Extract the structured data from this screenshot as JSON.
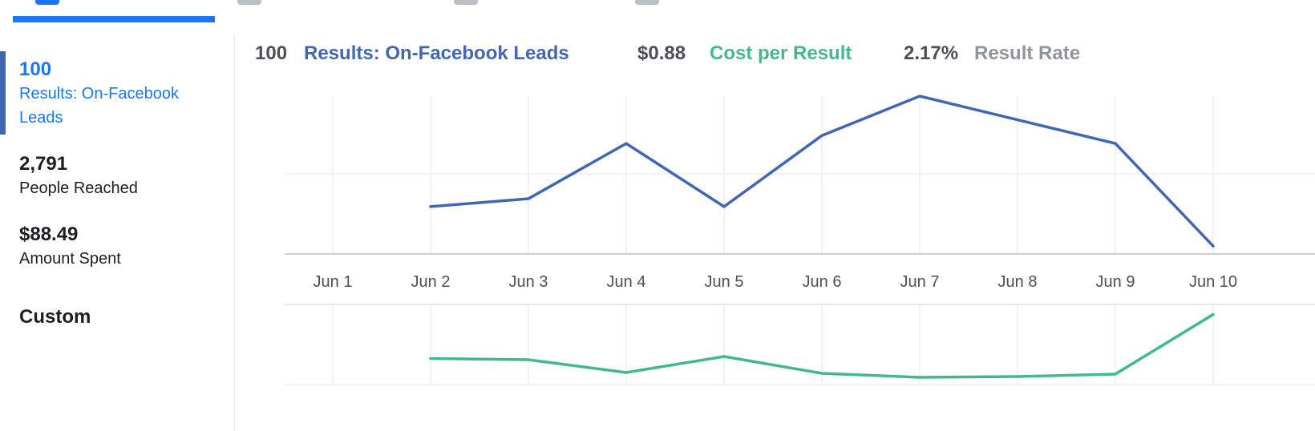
{
  "tabs": [
    {
      "label": "",
      "active": true,
      "icon": "bar-chart-icon"
    },
    {
      "label": "",
      "active": false,
      "icon": "demographics-icon"
    },
    {
      "label": "",
      "active": false,
      "icon": "placement-icon"
    },
    {
      "label": "",
      "active": false,
      "icon": "delivery-icon"
    }
  ],
  "metrics": [
    {
      "value": "100",
      "label": "Results: On-Facebook Leads",
      "selected": true
    },
    {
      "value": "2,791",
      "label": "People Reached",
      "selected": false
    },
    {
      "value": "$88.49",
      "label": "Amount Spent",
      "selected": false
    }
  ],
  "custom_label": "Custom",
  "legend": {
    "results_value": "100",
    "results_label": "Results: On-Facebook Leads",
    "cost_value": "$0.88",
    "cost_label": "Cost per Result",
    "rate_value": "2.17%",
    "rate_label": "Result Rate"
  },
  "colors": {
    "results": "#4267b2",
    "cost": "#42b88f",
    "selected_text": "#1877f2"
  },
  "chart_data": {
    "type": "line",
    "x": [
      "Jun 1",
      "Jun 2",
      "Jun 3",
      "Jun 4",
      "Jun 5",
      "Jun 6",
      "Jun 7",
      "Jun 8",
      "Jun 9",
      "Jun 10"
    ],
    "grid": true,
    "series": [
      {
        "name": "Results: On-Facebook Leads",
        "values": [
          null,
          6,
          7,
          14,
          6,
          15,
          20,
          17,
          14,
          1
        ],
        "ylim": [
          0,
          20
        ]
      },
      {
        "name": "Cost per Result",
        "values": [
          null,
          0.65,
          0.62,
          0.3,
          0.7,
          0.28,
          0.18,
          0.2,
          0.26,
          1.75
        ],
        "ylim": [
          0,
          2.0
        ]
      }
    ]
  }
}
